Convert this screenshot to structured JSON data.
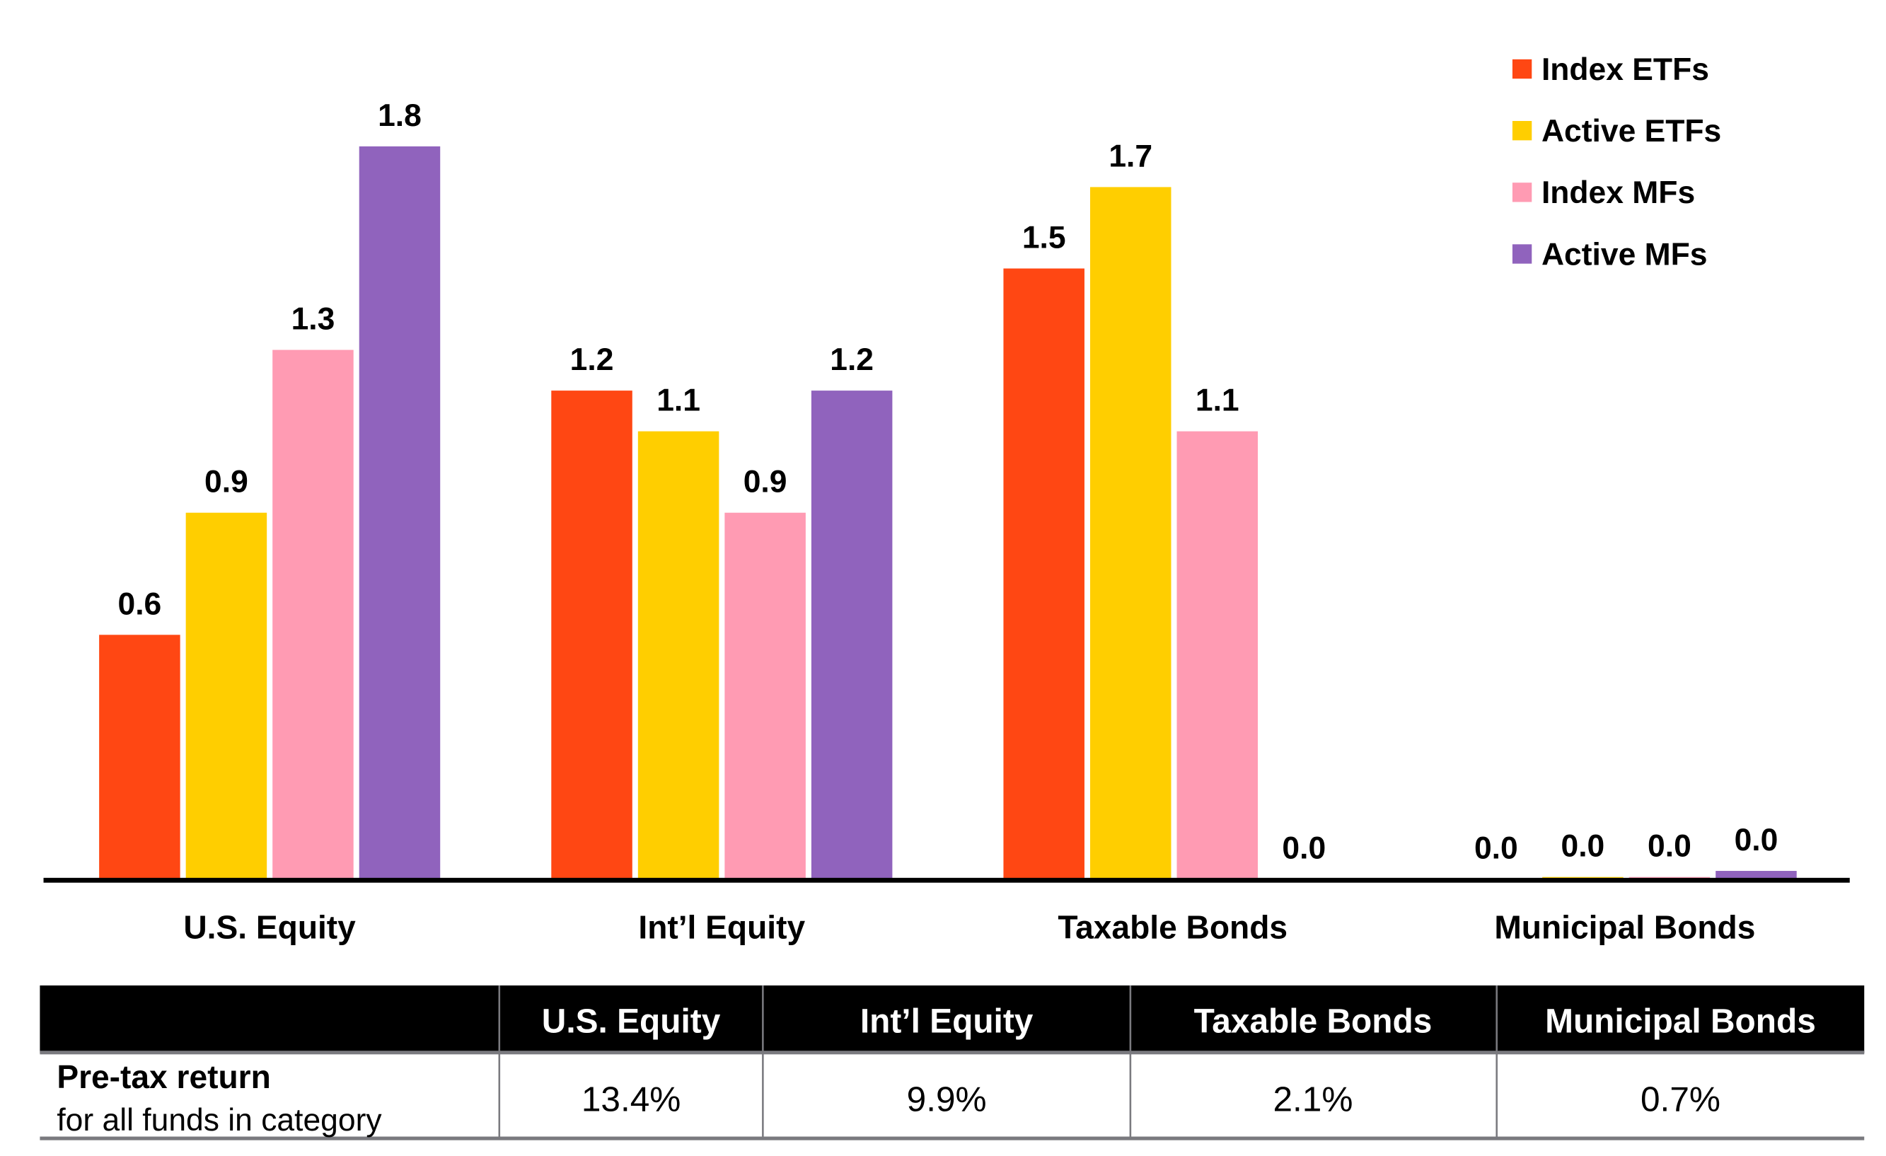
{
  "chart_data": {
    "type": "bar",
    "categories": [
      "U.S. Equity",
      "Int’l Equity",
      "Taxable Bonds",
      "Municipal Bonds"
    ],
    "series": [
      {
        "name": "Index ETFs",
        "color": "#FF4713",
        "values": [
          0.6,
          1.2,
          1.5,
          0.0
        ],
        "labels": [
          "0.6",
          "1.2",
          "1.5",
          "0.0"
        ]
      },
      {
        "name": "Active ETFs",
        "color": "#FFCE00",
        "values": [
          0.9,
          1.1,
          1.7,
          0.005
        ],
        "labels": [
          "0.9",
          "1.1",
          "1.7",
          "0.0"
        ]
      },
      {
        "name": "Index MFs",
        "color": "#FF9BB3",
        "values": [
          1.3,
          0.9,
          1.1,
          0.005
        ],
        "labels": [
          "1.3",
          "0.9",
          "1.1",
          "0.0"
        ]
      },
      {
        "name": "Active MFs",
        "color": "#9063BD",
        "values": [
          1.8,
          1.2,
          0.0,
          0.02
        ],
        "labels": [
          "1.8",
          "1.2",
          "0.0",
          "0.0"
        ]
      }
    ],
    "ylim": [
      0,
      1.8
    ],
    "grid": false,
    "legend": "top-right"
  },
  "table": {
    "headers": [
      "U.S. Equity",
      "Int’l Equity",
      "Taxable Bonds",
      "Municipal Bonds"
    ],
    "row_title": "Pre-tax return",
    "row_subtitle": "for all funds in category",
    "values": [
      "13.4%",
      "9.9%",
      "2.1%",
      "0.7%"
    ]
  }
}
